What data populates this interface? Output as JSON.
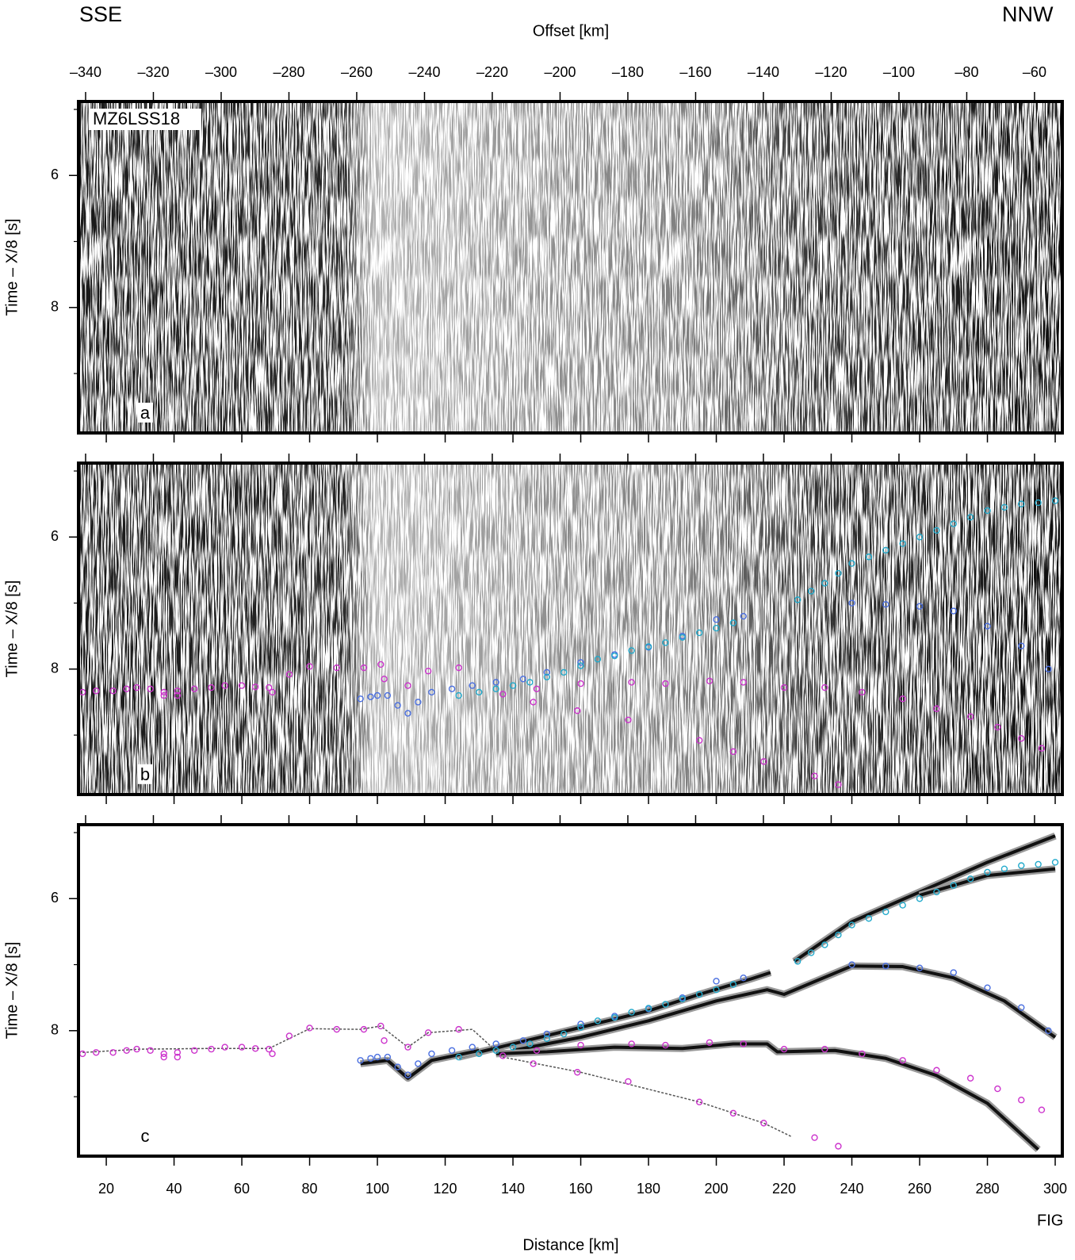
{
  "title_left": "SSE",
  "title_right": "NNW",
  "fig_label": "FIG",
  "chart_data": {
    "type": "scatter",
    "x_label_top": "Offset [km]",
    "x_label": "Distance [km]",
    "y_label": "Time – X/8 [s]",
    "station": "MZ6LSS18",
    "panels": [
      {
        "label": "a",
        "seismic": true,
        "picks": false,
        "model": false
      },
      {
        "label": "b",
        "seismic": true,
        "picks": true,
        "model": false
      },
      {
        "label": "c",
        "seismic": false,
        "picks": true,
        "model": true
      }
    ],
    "xlim": [
      11.8,
      302.1
    ],
    "xticks": [
      20,
      40,
      60,
      80,
      100,
      120,
      140,
      160,
      180,
      200,
      220,
      240,
      260,
      280,
      300
    ],
    "x2lim": [
      -342.1,
      -51.8
    ],
    "x2ticks": [
      {
        "value": -340,
        "label": "–340"
      },
      {
        "value": -320,
        "label": "–320"
      },
      {
        "value": -300,
        "label": "–300"
      },
      {
        "value": -280,
        "label": "–280"
      },
      {
        "value": -260,
        "label": "–260"
      },
      {
        "value": -240,
        "label": "–240"
      },
      {
        "value": -220,
        "label": "–220"
      },
      {
        "value": -200,
        "label": "–200"
      },
      {
        "value": -180,
        "label": "–180"
      },
      {
        "value": -160,
        "label": "–160"
      },
      {
        "value": -140,
        "label": "–140"
      },
      {
        "value": -120,
        "label": "–120"
      },
      {
        "value": -100,
        "label": "–100"
      },
      {
        "value": -80,
        "label": "–80"
      },
      {
        "value": -60,
        "label": "–60"
      }
    ],
    "ylim": [
      4.88,
      9.9
    ],
    "y_reversed": true,
    "yticks": [
      6,
      8
    ],
    "yminor": [
      5,
      7,
      9
    ],
    "picks": [
      {
        "color": "#cc33cc",
        "x": [
          13,
          17,
          22,
          26,
          29,
          33,
          37,
          37,
          41,
          41,
          46,
          51,
          55,
          60,
          64,
          68,
          69,
          74,
          80,
          88,
          96,
          101,
          102,
          109,
          115,
          124,
          137,
          146,
          159,
          174,
          195,
          205,
          214,
          229,
          236,
          147,
          160,
          175,
          185,
          198,
          208,
          220,
          232,
          243,
          255,
          265,
          275,
          283,
          290,
          296
        ],
        "values": [
          8.35,
          8.33,
          8.33,
          8.3,
          8.28,
          8.3,
          8.35,
          8.4,
          8.33,
          8.4,
          8.3,
          8.28,
          8.25,
          8.25,
          8.27,
          8.28,
          8.35,
          8.08,
          7.96,
          7.98,
          7.98,
          7.93,
          8.15,
          8.25,
          8.03,
          7.98,
          8.38,
          8.5,
          8.63,
          8.77,
          9.08,
          9.25,
          9.4,
          9.62,
          9.75,
          8.3,
          8.22,
          8.2,
          8.22,
          8.18,
          8.2,
          8.28,
          8.28,
          8.35,
          8.45,
          8.6,
          8.72,
          8.88,
          9.05,
          9.2
        ]
      },
      {
        "color": "#4a6fe0",
        "x": [
          95,
          98,
          100,
          103,
          106,
          109,
          112,
          116,
          122,
          128,
          135,
          143,
          150,
          160,
          170,
          180,
          190,
          200,
          208,
          240,
          250,
          260,
          270,
          280,
          290,
          298
        ],
        "values": [
          8.45,
          8.42,
          8.4,
          8.4,
          8.55,
          8.67,
          8.5,
          8.35,
          8.3,
          8.25,
          8.2,
          8.15,
          8.05,
          7.9,
          7.78,
          7.67,
          7.5,
          7.25,
          7.2,
          7.0,
          7.02,
          7.05,
          7.12,
          7.35,
          7.65,
          8.0
        ]
      },
      {
        "color": "#22aacc",
        "x": [
          124,
          130,
          135,
          140,
          145,
          150,
          155,
          160,
          165,
          170,
          175,
          180,
          185,
          190,
          195,
          200,
          205,
          224,
          228,
          232,
          236,
          240,
          245,
          250,
          255,
          260,
          265,
          270,
          275,
          280,
          285,
          290,
          295,
          300
        ],
        "values": [
          8.4,
          8.35,
          8.3,
          8.25,
          8.2,
          8.12,
          8.05,
          7.95,
          7.85,
          7.8,
          7.72,
          7.66,
          7.6,
          7.52,
          7.45,
          7.38,
          7.3,
          6.95,
          6.82,
          6.7,
          6.55,
          6.4,
          6.3,
          6.2,
          6.1,
          6.0,
          5.9,
          5.8,
          5.7,
          5.6,
          5.55,
          5.5,
          5.48,
          5.45
        ]
      }
    ],
    "model": [
      {
        "color": "#111111",
        "width": 4,
        "x": [
          124,
          140,
          160,
          180,
          195,
          210,
          216,
          null,
          223,
          240,
          260,
          280,
          300
        ],
        "values": [
          8.4,
          8.2,
          7.95,
          7.7,
          7.45,
          7.22,
          7.12,
          null,
          6.95,
          6.35,
          5.9,
          5.45,
          5.05
        ]
      },
      {
        "color": "#111111",
        "width": 4,
        "x": [
          140,
          160,
          180,
          200,
          215,
          220,
          240,
          255,
          270,
          285,
          300
        ],
        "values": [
          8.3,
          8.1,
          7.85,
          7.55,
          7.38,
          7.45,
          7.02,
          7.03,
          7.2,
          7.55,
          8.1
        ]
      },
      {
        "color": "#111111",
        "width": 4,
        "x": [
          135,
          150,
          170,
          190,
          205,
          215,
          218,
          235,
          250,
          265,
          280,
          295
        ],
        "values": [
          8.35,
          8.32,
          8.25,
          8.27,
          8.2,
          8.2,
          8.32,
          8.3,
          8.42,
          8.68,
          9.1,
          9.8
        ]
      },
      {
        "color": "#111111",
        "width": 4,
        "x": [
          260,
          280,
          300
        ],
        "values": [
          5.95,
          5.65,
          5.55
        ]
      },
      {
        "color": "#111111",
        "width": 4,
        "x": [
          95,
          103,
          109,
          116,
          130
        ],
        "values": [
          8.5,
          8.45,
          8.72,
          8.45,
          8.3
        ]
      },
      {
        "color": "#555555",
        "width": 1.5,
        "x": [
          13,
          30,
          50,
          68,
          80,
          95,
          101,
          109,
          115,
          128,
          137,
          160,
          195,
          214,
          222
        ],
        "values": [
          8.33,
          8.28,
          8.27,
          8.27,
          7.97,
          7.98,
          7.93,
          8.25,
          8.03,
          7.98,
          8.4,
          8.63,
          9.08,
          9.4,
          9.6
        ]
      }
    ]
  }
}
